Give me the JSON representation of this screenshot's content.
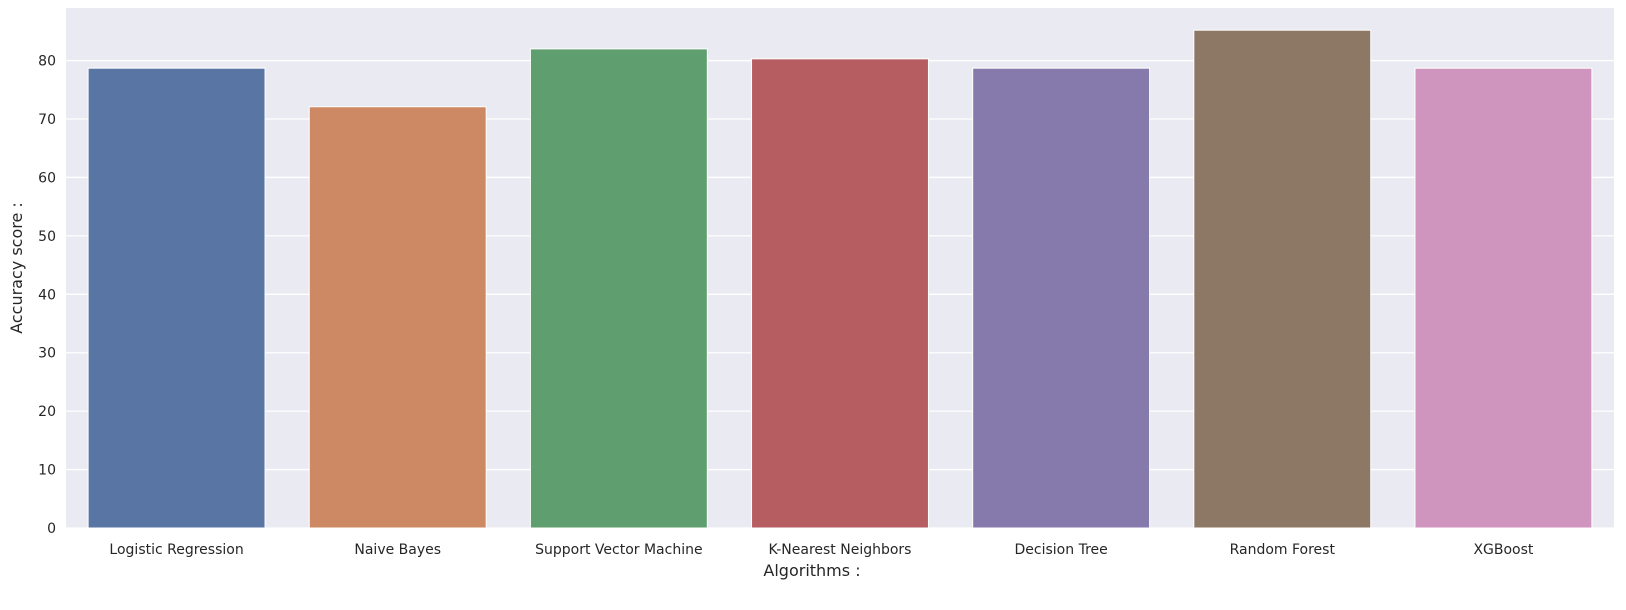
{
  "chart_data": {
    "type": "bar",
    "title": "",
    "xlabel": "Algorithms :",
    "ylabel": "Accuracy score :",
    "ylim": [
      0,
      89
    ],
    "yticks": [
      0,
      10,
      20,
      30,
      40,
      50,
      60,
      70,
      80
    ],
    "grid": true,
    "categories": [
      "Logistic Regression",
      "Naive Bayes",
      "Support Vector Machine",
      "K-Nearest Neighbors",
      "Decision Tree",
      "Random Forest",
      "XGBoost"
    ],
    "values": [
      78.7,
      72.1,
      82.0,
      80.3,
      78.7,
      85.2,
      78.7
    ],
    "colors": [
      "#5875a4",
      "#cc8963",
      "#5f9e6e",
      "#b55d60",
      "#857aab",
      "#8d7866",
      "#d095bf"
    ],
    "background": "#eaeaf2"
  }
}
